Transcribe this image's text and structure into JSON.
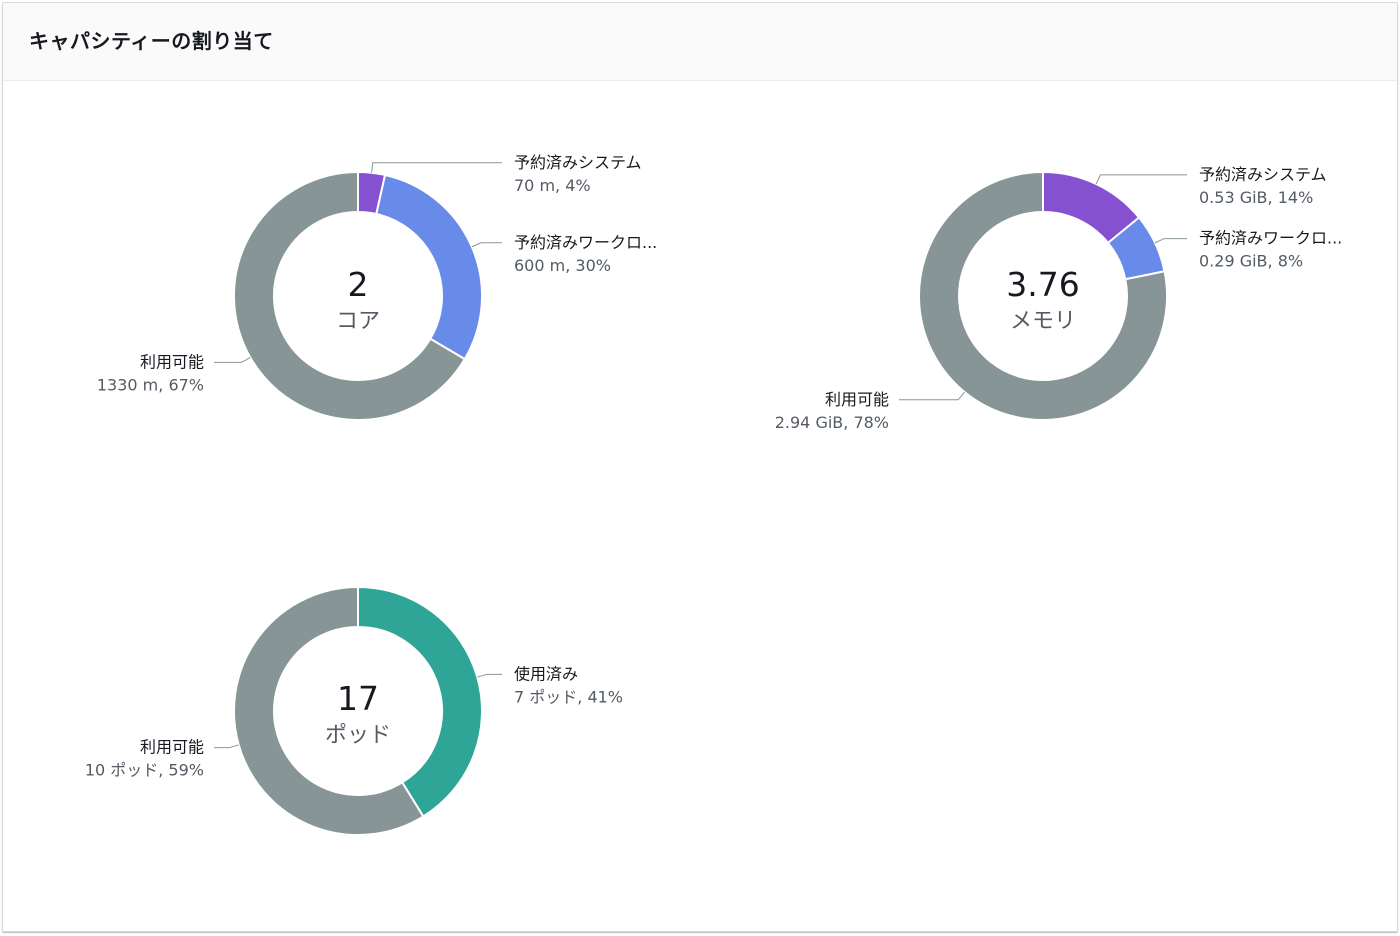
{
  "header": {
    "title": "キャパシティーの割り当て"
  },
  "colors": {
    "system": "#8551d0",
    "workload": "#688ae8",
    "available": "#879596",
    "used": "#2ea597"
  },
  "chart_data": [
    {
      "type": "pie",
      "title": "",
      "center": {
        "value": "2",
        "unit": "コア"
      },
      "slices": [
        {
          "name": "予約済みシステム",
          "value": 70,
          "detail": "70 m, 4%",
          "color": "#8551d0"
        },
        {
          "name": "予約済みワークロ...",
          "value": 600,
          "detail": "600 m, 30%",
          "color": "#688ae8"
        },
        {
          "name": "利用可能",
          "value": 1330,
          "detail": "1330 m, 67%",
          "color": "#879596"
        }
      ]
    },
    {
      "type": "pie",
      "title": "",
      "center": {
        "value": "3.76",
        "unit": "メモリ"
      },
      "slices": [
        {
          "name": "予約済みシステム",
          "value": 0.53,
          "detail": "0.53 GiB, 14%",
          "color": "#8551d0"
        },
        {
          "name": "予約済みワークロ...",
          "value": 0.29,
          "detail": "0.29 GiB, 8%",
          "color": "#688ae8"
        },
        {
          "name": "利用可能",
          "value": 2.94,
          "detail": "2.94 GiB, 78%",
          "color": "#879596"
        }
      ]
    },
    {
      "type": "pie",
      "title": "",
      "center": {
        "value": "17",
        "unit": "ポッド"
      },
      "slices": [
        {
          "name": "使用済み",
          "value": 7,
          "detail": "7 ポッド, 41%",
          "color": "#2ea597"
        },
        {
          "name": "利用可能",
          "value": 10,
          "detail": "10 ポッド, 59%",
          "color": "#879596"
        }
      ]
    }
  ]
}
